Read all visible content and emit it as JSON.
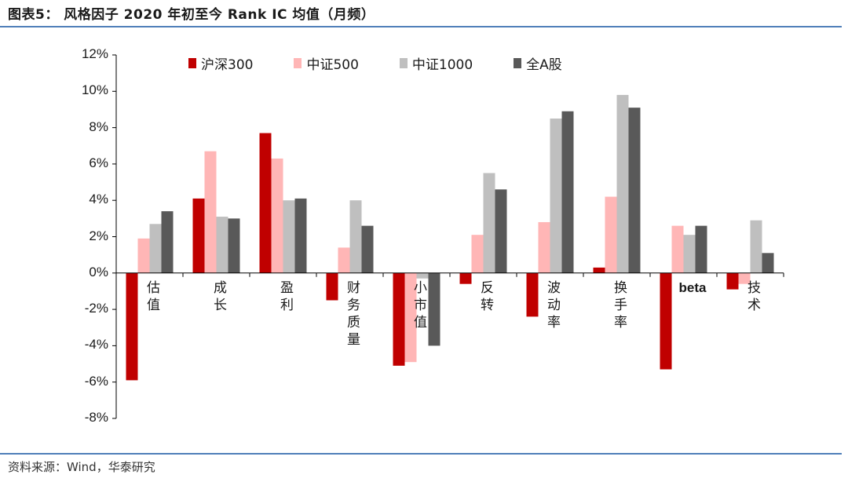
{
  "title": "图表5：  风格因子 2020 年初至今 Rank IC 均值（月频）",
  "source": "资料来源：Wind，华泰研究",
  "chart_data": {
    "type": "bar",
    "categories": [
      "估值",
      "成长",
      "盈利",
      "财务质量",
      "小市值",
      "反转",
      "波动率",
      "换手率",
      "beta",
      "技术"
    ],
    "series": [
      {
        "name": "沪深300",
        "color": "#c00000",
        "values": [
          -5.9,
          4.1,
          7.7,
          -1.5,
          -5.1,
          -0.6,
          -2.4,
          0.3,
          -5.3,
          -0.9
        ]
      },
      {
        "name": "中证500",
        "color": "#ffb6b6",
        "values": [
          1.9,
          6.7,
          6.3,
          1.4,
          -4.9,
          2.1,
          2.8,
          4.2,
          2.6,
          -0.6
        ]
      },
      {
        "name": "中证1000",
        "color": "#bfbfbf",
        "values": [
          2.7,
          3.1,
          4.0,
          4.0,
          -0.3,
          5.5,
          8.5,
          9.8,
          2.1,
          2.9
        ]
      },
      {
        "name": "全A股",
        "color": "#595959",
        "values": [
          3.4,
          3.0,
          4.1,
          2.6,
          -4.0,
          4.6,
          8.9,
          9.1,
          2.6,
          1.1
        ]
      }
    ],
    "ylim": [
      -8,
      12
    ],
    "yticks": [
      "12%",
      "10%",
      "8%",
      "6%",
      "4%",
      "2%",
      "0%",
      "-2%",
      "-4%",
      "-6%",
      "-8%"
    ],
    "xlabel": "",
    "ylabel": "",
    "grid": false,
    "legend": "top"
  }
}
